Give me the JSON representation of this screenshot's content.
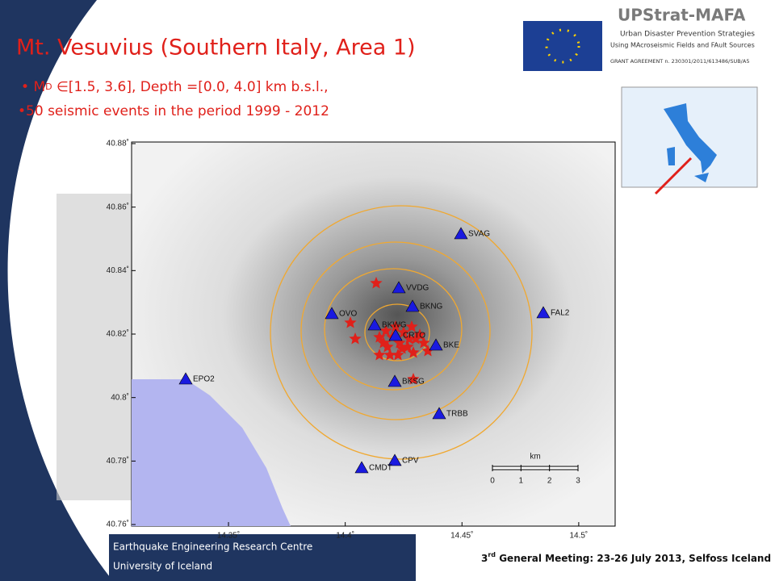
{
  "slide": {
    "title": "Mt. Vesuvius (Southern Italy, Area 1)",
    "bullet_1_m": "M",
    "bullet_1_sub": "D",
    "bullet_1_rest": "∈[1.5, 3.6], Depth =[0.0, 4.0] km b.s.l.,",
    "bullet_2": "50 seismic events in the period 1999 - 2012",
    "logo": {
      "name": "UPStrat-MAFA",
      "line_1": "Urban Disaster Prevention Strategies",
      "line_2": "Using MAcroseismic Fields and FAult Sources",
      "grant": "GRANT AGREEMENT n. 230301/2011/613486/SUB/A5"
    },
    "footer": {
      "left_1": "Earthquake Engineering Research Centre",
      "left_2": "University of Iceland",
      "meeting_num": "3",
      "meeting_sup": "rd",
      "meeting_rest": " General Meeting: 23-26 July 2013, Selfoss Iceland"
    }
  },
  "map": {
    "xlim": [
      14.3085,
      14.5156
    ],
    "ylim": [
      40.7595,
      40.8805
    ],
    "lon_ticks": [
      {
        "value": 14.35,
        "label": "14.35˚"
      },
      {
        "value": 14.4,
        "label": "14.4˚"
      },
      {
        "value": 14.45,
        "label": "14.45˚"
      },
      {
        "value": 14.5,
        "label": "14.5˚"
      }
    ],
    "lat_ticks": [
      {
        "value": 40.76,
        "label": "40.76˚"
      },
      {
        "value": 40.78,
        "label": "40.78˚"
      },
      {
        "value": 40.8,
        "label": "40.8˚"
      },
      {
        "value": 40.82,
        "label": "40.82˚"
      },
      {
        "value": 40.84,
        "label": "40.84˚"
      },
      {
        "value": 40.86,
        "label": "40.86˚"
      },
      {
        "value": 40.88,
        "label": "40.88˚"
      }
    ],
    "stations": [
      "SVAG",
      "VVDG",
      "BKNG",
      "OVO",
      "FAL2",
      "BKWG",
      "CRTO",
      "BKE",
      "EPO2",
      "BKSG",
      "TRBB",
      "CPV",
      "CMDT"
    ],
    "scale_unit": "km",
    "scale_ticks": [
      0,
      1,
      2,
      3
    ]
  }
}
